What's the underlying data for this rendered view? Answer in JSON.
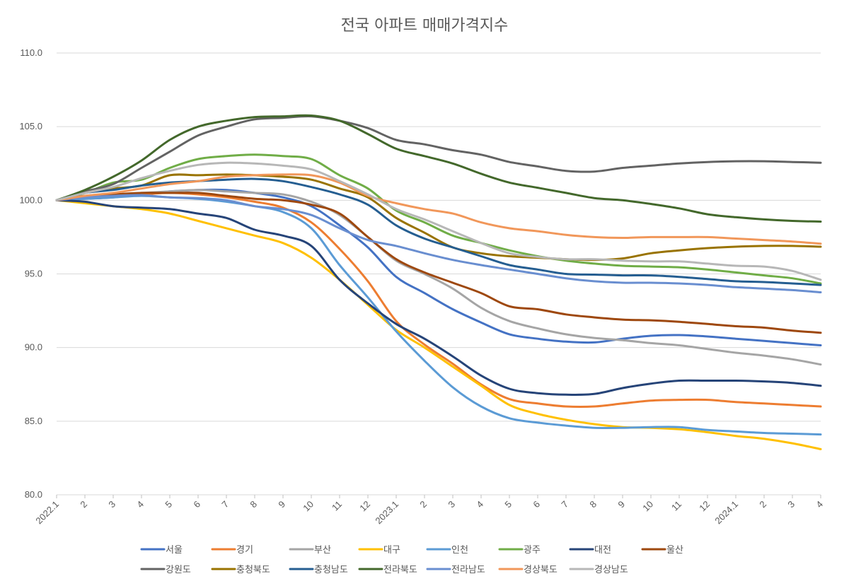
{
  "chart_data": {
    "type": "line",
    "title": "전국 아파트 매매가격지수",
    "xlabel": "",
    "ylabel": "",
    "ylim": [
      80,
      110
    ],
    "y_ticks": [
      "80.0",
      "85.0",
      "90.0",
      "95.0",
      "100.0",
      "105.0",
      "110.0"
    ],
    "grid": "horizontal",
    "legend_position": "bottom",
    "categories": [
      "2022.1",
      "2",
      "3",
      "4",
      "5",
      "6",
      "7",
      "8",
      "9",
      "10",
      "11",
      "12",
      "2023.1",
      "2",
      "3",
      "4",
      "5",
      "6",
      "7",
      "8",
      "9",
      "10",
      "11",
      "12",
      "2024.1",
      "2",
      "3",
      "4"
    ],
    "series": [
      {
        "name": "서울",
        "color": "#4472C4",
        "values": [
          100.0,
          100.1,
          100.2,
          100.4,
          100.6,
          100.7,
          100.7,
          100.5,
          100.2,
          99.6,
          98.3,
          96.8,
          94.8,
          93.7,
          92.6,
          91.7,
          90.9,
          90.6,
          90.4,
          90.35,
          90.6,
          90.8,
          90.85,
          90.75,
          90.6,
          90.45,
          90.3,
          90.15
        ]
      },
      {
        "name": "경기",
        "color": "#ED7D31",
        "values": [
          100.0,
          100.2,
          100.3,
          100.4,
          100.5,
          100.4,
          100.2,
          99.9,
          99.5,
          98.5,
          96.7,
          94.5,
          91.8,
          90.2,
          88.9,
          87.5,
          86.5,
          86.2,
          86.0,
          86.0,
          86.2,
          86.4,
          86.45,
          86.45,
          86.3,
          86.2,
          86.1,
          86.0
        ]
      },
      {
        "name": "부산",
        "color": "#A5A5A5",
        "values": [
          100.0,
          100.3,
          100.4,
          100.5,
          100.6,
          100.7,
          100.6,
          100.5,
          100.4,
          99.9,
          99.0,
          97.5,
          95.9,
          95.0,
          94.0,
          92.7,
          91.8,
          91.3,
          90.9,
          90.65,
          90.5,
          90.3,
          90.15,
          89.9,
          89.65,
          89.45,
          89.2,
          88.85
        ]
      },
      {
        "name": "대구",
        "color": "#FFC000",
        "values": [
          100.0,
          99.8,
          99.6,
          99.4,
          99.1,
          98.6,
          98.1,
          97.6,
          97.1,
          96.1,
          94.6,
          92.9,
          91.2,
          90.0,
          88.7,
          87.4,
          86.1,
          85.5,
          85.1,
          84.8,
          84.6,
          84.55,
          84.45,
          84.25,
          84.0,
          83.8,
          83.5,
          83.1
        ]
      },
      {
        "name": "인천",
        "color": "#5B9BD5",
        "values": [
          100.0,
          100.1,
          100.2,
          100.3,
          100.2,
          100.1,
          99.9,
          99.6,
          99.2,
          98.1,
          95.6,
          93.4,
          91.1,
          89.1,
          87.3,
          86.0,
          85.2,
          84.9,
          84.7,
          84.55,
          84.55,
          84.6,
          84.6,
          84.4,
          84.3,
          84.2,
          84.15,
          84.1
        ]
      },
      {
        "name": "광주",
        "color": "#70AD47",
        "values": [
          100.0,
          100.5,
          101.2,
          101.4,
          102.2,
          102.8,
          103.0,
          103.1,
          103.0,
          102.8,
          101.7,
          100.8,
          99.3,
          98.5,
          97.6,
          97.1,
          96.6,
          96.2,
          95.9,
          95.7,
          95.55,
          95.5,
          95.45,
          95.3,
          95.1,
          94.9,
          94.7,
          94.35
        ]
      },
      {
        "name": "대전",
        "color": "#264478",
        "values": [
          100.0,
          99.9,
          99.6,
          99.5,
          99.4,
          99.1,
          98.8,
          98.0,
          97.6,
          96.9,
          94.6,
          93.0,
          91.6,
          90.6,
          89.4,
          88.1,
          87.2,
          86.9,
          86.8,
          86.85,
          87.25,
          87.55,
          87.75,
          87.75,
          87.75,
          87.7,
          87.6,
          87.4
        ]
      },
      {
        "name": "울산",
        "color": "#9E480E",
        "values": [
          100.0,
          100.3,
          100.4,
          100.5,
          100.5,
          100.5,
          100.3,
          100.1,
          100.0,
          99.7,
          99.1,
          97.5,
          96.0,
          95.1,
          94.4,
          93.7,
          92.8,
          92.6,
          92.25,
          92.05,
          91.9,
          91.85,
          91.75,
          91.6,
          91.45,
          91.35,
          91.15,
          91.0
        ]
      },
      {
        "name": "강원도",
        "color": "#636363",
        "values": [
          100.0,
          100.6,
          101.1,
          102.2,
          103.3,
          104.4,
          105.0,
          105.5,
          105.6,
          105.7,
          105.4,
          104.9,
          104.1,
          103.8,
          103.4,
          103.1,
          102.6,
          102.3,
          102.0,
          101.95,
          102.2,
          102.35,
          102.5,
          102.6,
          102.65,
          102.65,
          102.6,
          102.55
        ]
      },
      {
        "name": "충청북도",
        "color": "#997300",
        "values": [
          100.0,
          100.5,
          100.8,
          101.0,
          101.7,
          101.7,
          101.75,
          101.7,
          101.6,
          101.4,
          100.8,
          100.2,
          98.8,
          97.8,
          96.8,
          96.4,
          96.2,
          96.1,
          96.0,
          95.95,
          96.05,
          96.4,
          96.6,
          96.75,
          96.85,
          96.9,
          96.9,
          96.85
        ]
      },
      {
        "name": "충청남도",
        "color": "#255E91",
        "values": [
          100.0,
          100.5,
          100.7,
          101.0,
          101.2,
          101.3,
          101.4,
          101.45,
          101.3,
          100.9,
          100.4,
          99.7,
          98.3,
          97.4,
          96.8,
          96.2,
          95.6,
          95.3,
          95.0,
          94.95,
          94.9,
          94.9,
          94.8,
          94.65,
          94.5,
          94.45,
          94.35,
          94.25
        ]
      },
      {
        "name": "전라북도",
        "color": "#43682B",
        "values": [
          100.0,
          100.7,
          101.6,
          102.7,
          104.1,
          105.0,
          105.4,
          105.65,
          105.7,
          105.75,
          105.4,
          104.5,
          103.5,
          103.0,
          102.5,
          101.8,
          101.2,
          100.85,
          100.5,
          100.15,
          100.0,
          99.75,
          99.45,
          99.05,
          98.85,
          98.7,
          98.6,
          98.55
        ]
      },
      {
        "name": "전라남도",
        "color": "#698ED0",
        "values": [
          100.0,
          100.2,
          100.3,
          100.35,
          100.2,
          100.15,
          100.0,
          99.6,
          99.4,
          99.0,
          98.1,
          97.3,
          96.9,
          96.4,
          95.95,
          95.6,
          95.3,
          95.0,
          94.7,
          94.5,
          94.4,
          94.4,
          94.35,
          94.25,
          94.1,
          94.0,
          93.9,
          93.75
        ]
      },
      {
        "name": "경상북도",
        "color": "#F1975A",
        "values": [
          100.0,
          100.3,
          100.5,
          100.8,
          101.1,
          101.3,
          101.6,
          101.7,
          101.75,
          101.7,
          101.2,
          100.3,
          99.8,
          99.4,
          99.1,
          98.5,
          98.1,
          97.9,
          97.65,
          97.5,
          97.45,
          97.5,
          97.5,
          97.5,
          97.4,
          97.3,
          97.2,
          97.05
        ]
      },
      {
        "name": "경상남도",
        "color": "#B7B7B7",
        "values": [
          100.0,
          100.5,
          100.9,
          101.5,
          102.0,
          102.4,
          102.55,
          102.5,
          102.35,
          102.1,
          101.3,
          100.4,
          99.4,
          98.7,
          97.9,
          97.1,
          96.4,
          96.15,
          96.0,
          96.0,
          95.9,
          95.85,
          95.85,
          95.7,
          95.55,
          95.5,
          95.2,
          94.6
        ]
      }
    ]
  }
}
